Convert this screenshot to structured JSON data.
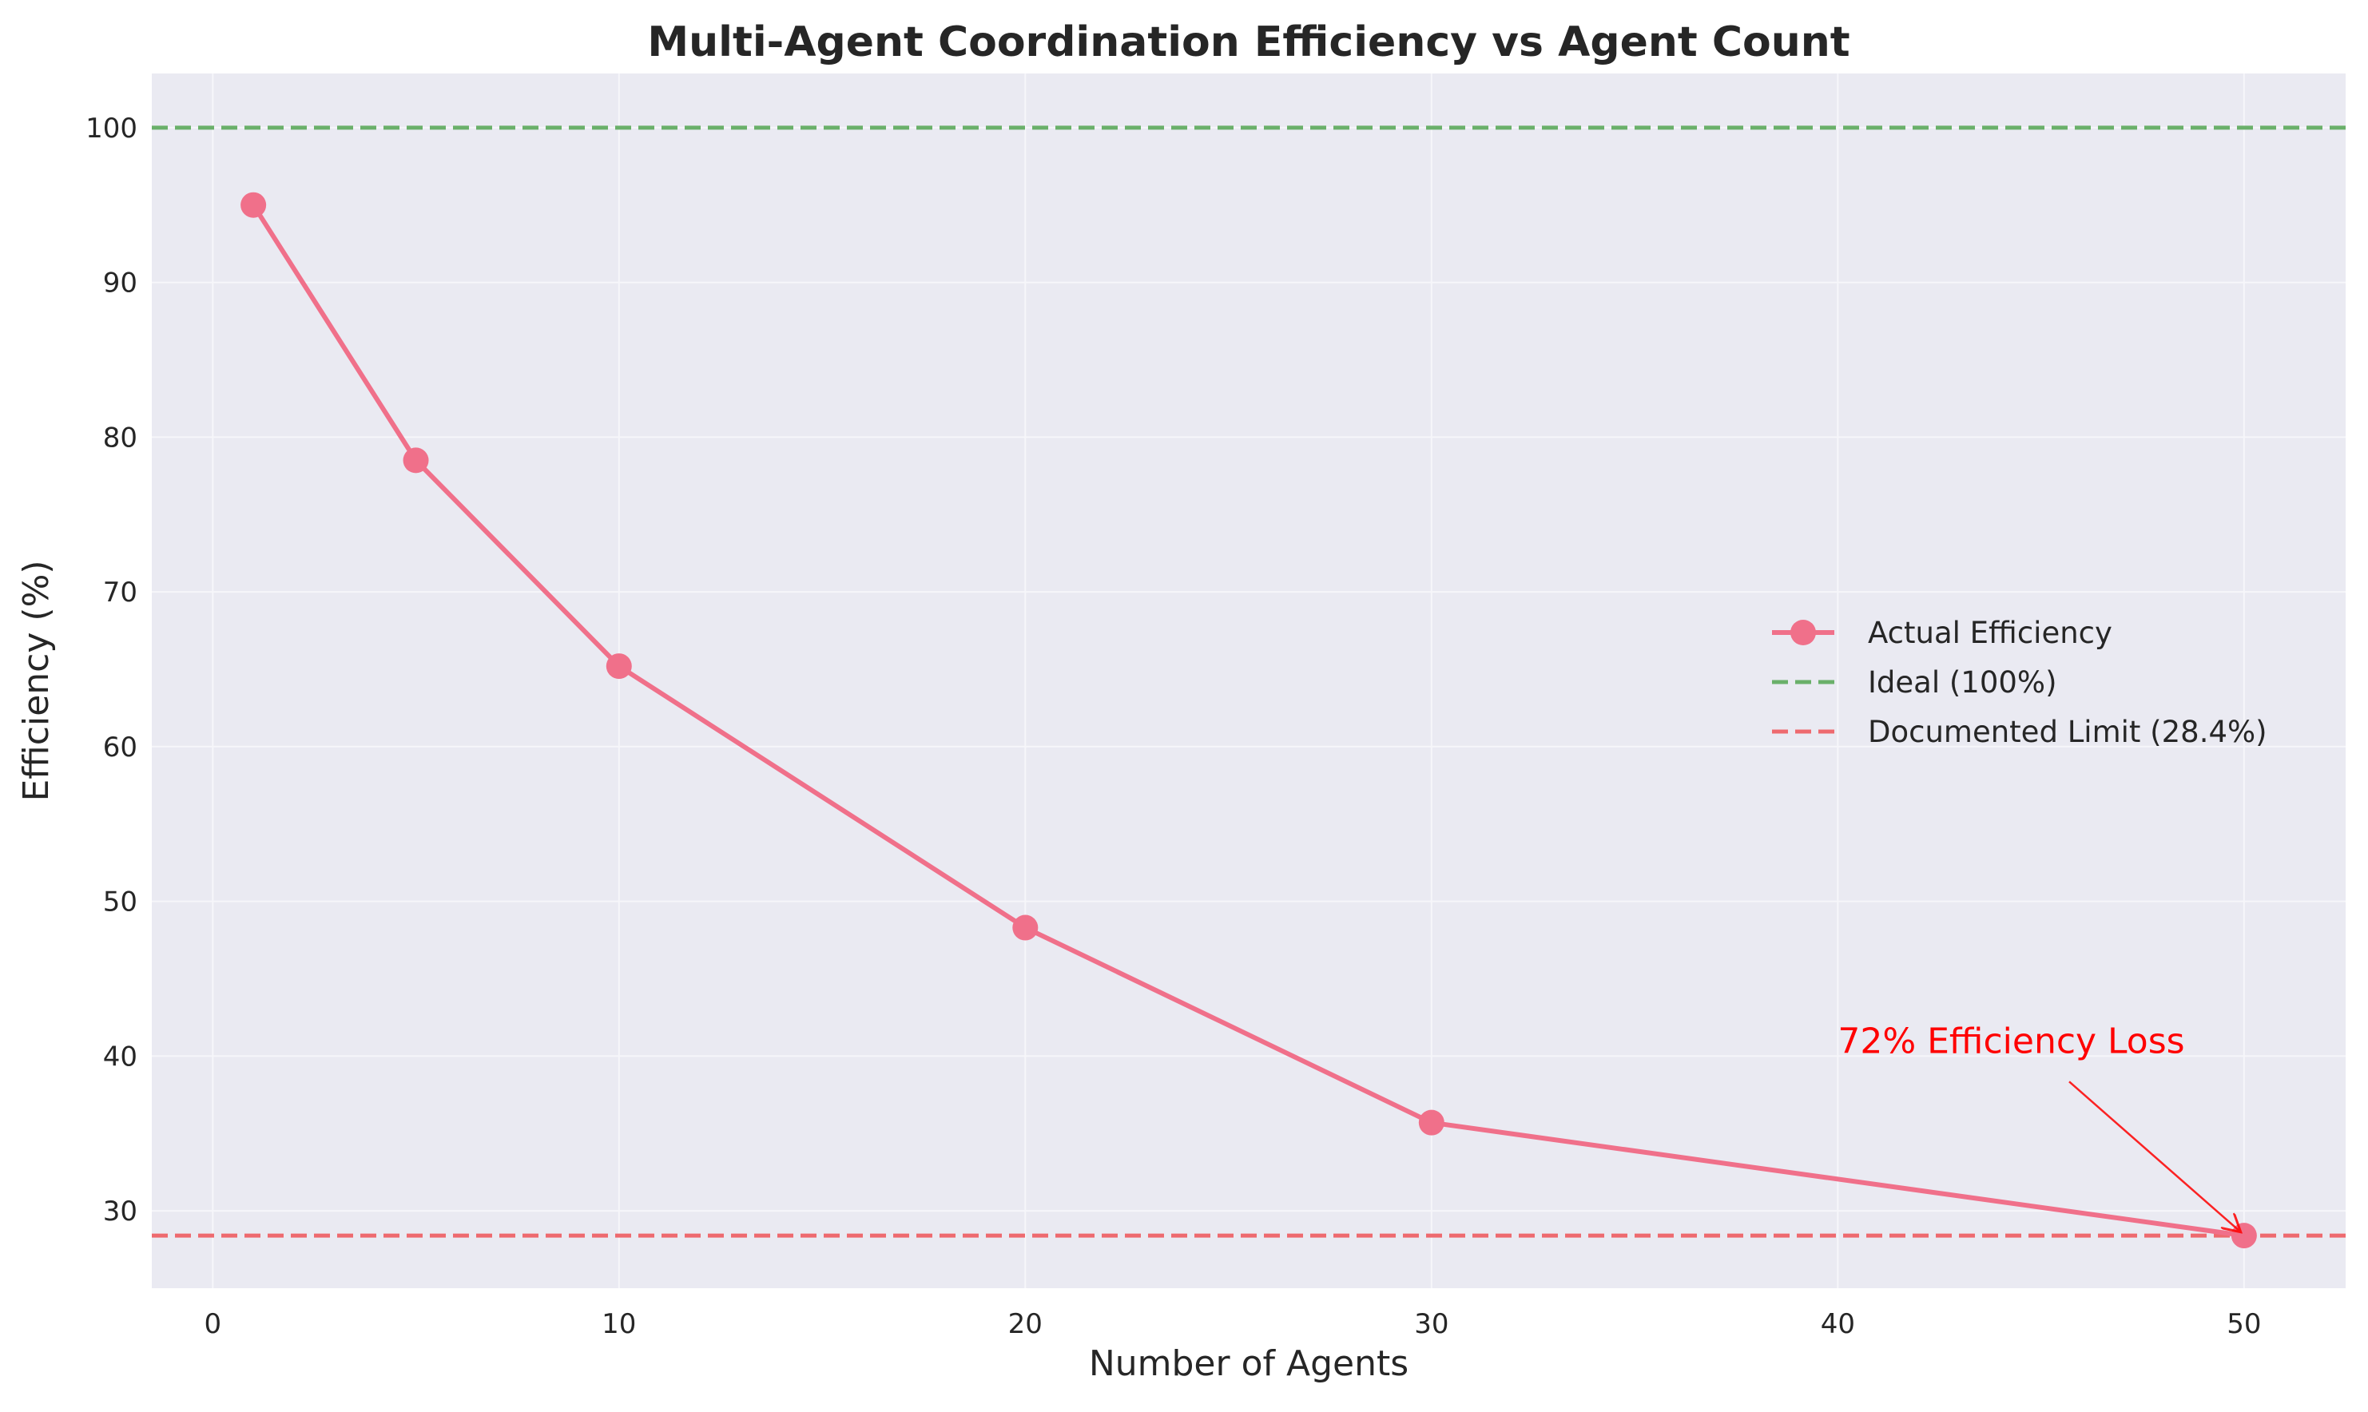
{
  "chart_data": {
    "type": "line",
    "title": "Multi-Agent Coordination Efficiency vs Agent Count",
    "xlabel": "Number of Agents",
    "ylabel": "Efficiency (%)",
    "xlim": [
      -1.5,
      52.5
    ],
    "ylim": [
      25,
      103.5
    ],
    "xticks": [
      0,
      10,
      20,
      30,
      40,
      50
    ],
    "yticks": [
      30,
      40,
      50,
      60,
      70,
      80,
      90,
      100
    ],
    "grid": true,
    "legend_position": "center-right",
    "series": [
      {
        "name": "Actual Efficiency",
        "x": [
          1,
          5,
          10,
          20,
          30,
          50
        ],
        "y": [
          95.0,
          78.5,
          65.2,
          48.3,
          35.7,
          28.4
        ],
        "color": "#f0708a",
        "marker": "circle",
        "linestyle": "solid"
      }
    ],
    "reference_lines": [
      {
        "name": "Ideal (100%)",
        "y": 100,
        "color": "#6ab06a",
        "linestyle": "dashed"
      },
      {
        "name": "Documented Limit (28.4%)",
        "y": 28.4,
        "color": "#ee6a6f",
        "linestyle": "dashed"
      }
    ],
    "annotations": [
      {
        "text": "72% Efficiency Loss",
        "text_x": 40,
        "text_y": 40,
        "point_x": 50,
        "point_y": 28.4,
        "color": "#ff0000"
      }
    ],
    "colors": {
      "plot_background": "#eaeaf2",
      "grid": "#f6f6fa",
      "text": "#262626",
      "title": "#262626"
    }
  }
}
